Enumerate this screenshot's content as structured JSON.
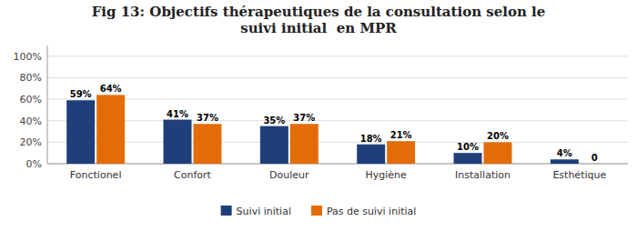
{
  "chart_data": {
    "type": "bar",
    "title": "Fig 13: Objectifs thérapeutiques de la consultation selon le\nsuivi initial  en MPR",
    "categories": [
      "Fonctionel",
      "Confort",
      "Douleur",
      "Hygiène",
      "Installation",
      "Esthétique"
    ],
    "series": [
      {
        "name": "Suivi initial",
        "color": "#1F3F7A",
        "values": [
          59,
          41,
          35,
          18,
          10,
          4
        ],
        "value_labels": [
          "59%",
          "41%",
          "35%",
          "18%",
          "10%",
          "4%"
        ]
      },
      {
        "name": "Pas de suivi initial",
        "color": "#E36C09",
        "values": [
          64,
          37,
          37,
          21,
          20,
          0
        ],
        "value_labels": [
          "64%",
          "37%",
          "37%",
          "21%",
          "20%",
          "0"
        ]
      }
    ],
    "ylim": [
      0,
      110
    ],
    "yticks": [
      {
        "value": 0,
        "label": "0%"
      },
      {
        "value": 20,
        "label": "20%"
      },
      {
        "value": 40,
        "label": "40%"
      },
      {
        "value": 60,
        "label": "60%"
      },
      {
        "value": 80,
        "label": "80%"
      },
      {
        "value": 100,
        "label": "100%"
      }
    ],
    "grid": true,
    "legend": "bottom",
    "data_labels": true
  }
}
